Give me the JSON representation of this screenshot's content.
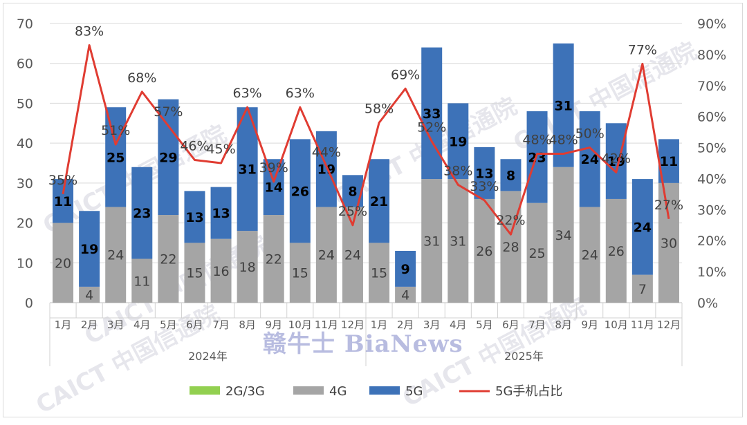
{
  "chart_data": {
    "type": "bar",
    "stacked": true,
    "categories": [
      "1月",
      "2月",
      "3月",
      "4月",
      "5月",
      "6月",
      "7月",
      "8月",
      "9月",
      "10月",
      "11月",
      "12月",
      "1月",
      "2月",
      "3月",
      "4月",
      "5月",
      "6月",
      "7月",
      "8月",
      "9月",
      "10月",
      "11月",
      "12月"
    ],
    "groups": [
      {
        "label": "2024年",
        "count": 12
      },
      {
        "label": "2025年",
        "count": 12
      }
    ],
    "series": [
      {
        "name": "2G/3G",
        "type": "bar",
        "color": "#92d050",
        "values": [
          0,
          0,
          0,
          0,
          0,
          0,
          0,
          0,
          0,
          0,
          0,
          0,
          0,
          0,
          0,
          0,
          0,
          0,
          0,
          0,
          0,
          0,
          0,
          0
        ]
      },
      {
        "name": "4G",
        "type": "bar",
        "color": "#a5a5a5",
        "values": [
          20,
          4,
          24,
          11,
          22,
          15,
          16,
          18,
          22,
          15,
          24,
          24,
          15,
          4,
          31,
          31,
          26,
          28,
          25,
          34,
          24,
          26,
          7,
          30
        ],
        "labels": [
          "20",
          "4",
          "24",
          "11",
          "22",
          "15",
          "16",
          "18",
          "22",
          "15",
          "24",
          "24",
          "15",
          "4",
          "31",
          "31",
          "26",
          "28",
          "25",
          "34",
          "24",
          "26",
          "7",
          "30"
        ]
      },
      {
        "name": "5G",
        "type": "bar",
        "color": "#3d72b8",
        "values": [
          11,
          19,
          25,
          23,
          29,
          13,
          13,
          31,
          14,
          26,
          19,
          8,
          21,
          9,
          33,
          19,
          13,
          8,
          23,
          31,
          24,
          19,
          24,
          11
        ],
        "labels": [
          "11",
          "19",
          "25",
          "23",
          "29",
          "13",
          "13",
          "31",
          "14",
          "26",
          "19",
          "8",
          "21",
          "9",
          "33",
          "19",
          "13",
          "8",
          "23",
          "31",
          "24",
          "19",
          "24",
          "11"
        ]
      },
      {
        "name": "5G手机占比",
        "type": "line",
        "axis": "right",
        "color": "#e03c32",
        "values": [
          35,
          83,
          51,
          68,
          57,
          46,
          45,
          63,
          39,
          63,
          44,
          25,
          58,
          69,
          52,
          38,
          33,
          22,
          48,
          48,
          50,
          42,
          77,
          27
        ],
        "labels": [
          "35%",
          "83%",
          "51%",
          "68%",
          "57%",
          "46%",
          "45%",
          "63%",
          "39%",
          "63%",
          "44%",
          "25%",
          "58%",
          "69%",
          "52%",
          "38%",
          "33%",
          "22%",
          "48%",
          "48%",
          "50%",
          "42%",
          "77%",
          "27%"
        ]
      }
    ],
    "y_left": {
      "min": 0,
      "max": 70,
      "ticks": [
        "0",
        "10",
        "20",
        "30",
        "40",
        "50",
        "60",
        "70"
      ]
    },
    "y_right": {
      "min": 0,
      "max": 90,
      "ticks": [
        "0%",
        "10%",
        "20%",
        "30%",
        "40%",
        "50%",
        "60%",
        "70%",
        "80%",
        "90%"
      ]
    },
    "legend_position": "bottom",
    "grid": true
  },
  "watermarks": [
    "CAICT 中国信通院"
  ],
  "brand": "赣牛士 BiaNews"
}
